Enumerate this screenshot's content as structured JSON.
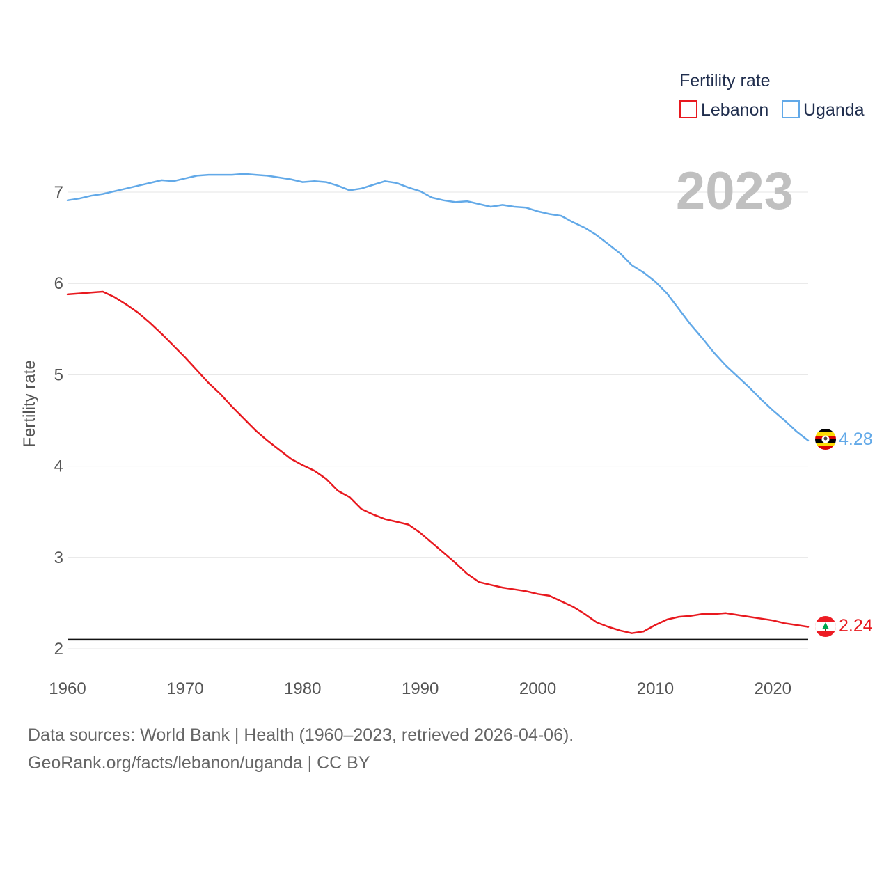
{
  "chart_data": {
    "type": "line",
    "ylabel": "Fertility rate",
    "xlabel": "",
    "ylim": [
      1.9,
      7.45
    ],
    "xlim": [
      1960,
      2023
    ],
    "x_ticks": [
      1960,
      1970,
      1980,
      1990,
      2000,
      2010,
      2020
    ],
    "y_ticks": [
      2,
      3,
      4,
      5,
      6,
      7
    ],
    "grid": true,
    "legend_title": "Fertility rate",
    "legend_position": "top-right",
    "year_label": "2023",
    "reference_line": 2.1,
    "x": [
      1960,
      1961,
      1962,
      1963,
      1964,
      1965,
      1966,
      1967,
      1968,
      1969,
      1970,
      1971,
      1972,
      1973,
      1974,
      1975,
      1976,
      1977,
      1978,
      1979,
      1980,
      1981,
      1982,
      1983,
      1984,
      1985,
      1986,
      1987,
      1988,
      1989,
      1990,
      1991,
      1992,
      1993,
      1994,
      1995,
      1996,
      1997,
      1998,
      1999,
      2000,
      2001,
      2002,
      2003,
      2004,
      2005,
      2006,
      2007,
      2008,
      2009,
      2010,
      2011,
      2012,
      2013,
      2014,
      2015,
      2016,
      2017,
      2018,
      2019,
      2020,
      2021,
      2022,
      2023
    ],
    "series": [
      {
        "name": "Lebanon",
        "color": "#e8191f",
        "end_label": "2.24",
        "values": [
          5.88,
          5.89,
          5.9,
          5.91,
          5.85,
          5.77,
          5.68,
          5.57,
          5.45,
          5.32,
          5.19,
          5.05,
          4.91,
          4.79,
          4.65,
          4.52,
          4.39,
          4.28,
          4.18,
          4.08,
          4.01,
          3.95,
          3.86,
          3.73,
          3.66,
          3.53,
          3.47,
          3.42,
          3.39,
          3.36,
          3.27,
          3.16,
          3.05,
          2.94,
          2.82,
          2.73,
          2.7,
          2.67,
          2.65,
          2.63,
          2.6,
          2.58,
          2.52,
          2.46,
          2.38,
          2.29,
          2.24,
          2.2,
          2.17,
          2.19,
          2.26,
          2.32,
          2.35,
          2.36,
          2.38,
          2.38,
          2.39,
          2.37,
          2.35,
          2.33,
          2.31,
          2.28,
          2.26,
          2.24
        ]
      },
      {
        "name": "Uganda",
        "color": "#62a9e8",
        "end_label": "4.28",
        "values": [
          6.91,
          6.93,
          6.96,
          6.98,
          7.01,
          7.04,
          7.07,
          7.1,
          7.13,
          7.12,
          7.15,
          7.18,
          7.19,
          7.19,
          7.19,
          7.2,
          7.19,
          7.18,
          7.16,
          7.14,
          7.11,
          7.12,
          7.11,
          7.07,
          7.02,
          7.04,
          7.08,
          7.12,
          7.1,
          7.05,
          7.01,
          6.94,
          6.91,
          6.89,
          6.9,
          6.87,
          6.84,
          6.86,
          6.84,
          6.83,
          6.79,
          6.76,
          6.74,
          6.67,
          6.61,
          6.53,
          6.43,
          6.33,
          6.2,
          6.12,
          6.02,
          5.89,
          5.72,
          5.55,
          5.4,
          5.24,
          5.1,
          4.98,
          4.86,
          4.73,
          4.61,
          4.5,
          4.38,
          4.28
        ]
      }
    ]
  },
  "footer": {
    "sources": "Data sources: World Bank | Health (1960–2023, retrieved 2026-04-06).",
    "credit": "GeoRank.org/facts/lebanon/uganda | CC BY"
  }
}
